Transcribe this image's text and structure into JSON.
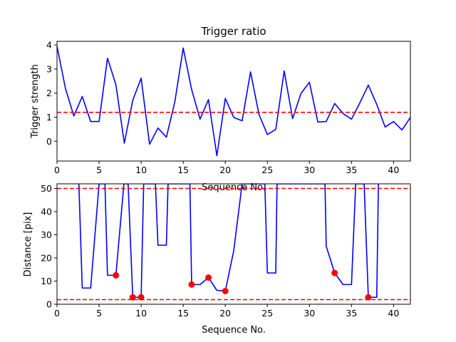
{
  "chart_data": [
    {
      "type": "line",
      "title": "Trigger ratio",
      "xlabel": "Sequence No.",
      "ylabel": "Trigger strength",
      "xlim": [
        0,
        42
      ],
      "ylim": [
        -0.82,
        4.15
      ],
      "xticks": [
        0,
        5,
        10,
        15,
        20,
        25,
        30,
        35,
        40
      ],
      "yticks": [
        0,
        1,
        2,
        3,
        4
      ],
      "grid": false,
      "series": [
        {
          "color": "#0000ff",
          "x": [
            0,
            1,
            2,
            3,
            4,
            5,
            6,
            7,
            8,
            9,
            10,
            11,
            12,
            13,
            14,
            15,
            16,
            17,
            18,
            19,
            20,
            21,
            22,
            23,
            24,
            25,
            26,
            27,
            28,
            29,
            30,
            31,
            32,
            33,
            34,
            35,
            36,
            37,
            38,
            39,
            40,
            41,
            42
          ],
          "y": [
            3.95,
            2.2,
            1.05,
            1.86,
            0.82,
            0.82,
            3.45,
            2.35,
            -0.08,
            1.7,
            2.62,
            -0.12,
            0.55,
            0.17,
            1.63,
            3.87,
            2.15,
            0.92,
            1.73,
            -0.6,
            1.78,
            0.99,
            0.85,
            2.88,
            1.12,
            0.28,
            0.49,
            2.92,
            0.94,
            1.99,
            2.45,
            0.8,
            0.82,
            1.57,
            1.15,
            0.92,
            1.6,
            2.33,
            1.53,
            0.59,
            0.82,
            0.47,
            0.99
          ]
        }
      ],
      "hlines": [
        {
          "y": 1.2,
          "color": "#ff0000",
          "style": "dashed"
        }
      ]
    },
    {
      "type": "line",
      "title": "",
      "xlabel": "Sequence No.",
      "ylabel": "Distance [pix]",
      "xlim": [
        0,
        42
      ],
      "ylim": [
        0,
        52
      ],
      "xticks": [
        0,
        5,
        10,
        15,
        20,
        25,
        30,
        35,
        40
      ],
      "yticks": [
        0,
        10,
        20,
        30,
        40,
        50
      ],
      "grid": false,
      "series": [
        {
          "color": "#0000ff",
          "x": [
            2.6,
            3,
            4,
            5,
            5.7,
            6,
            7,
            7.95,
            8.45,
            9,
            10,
            10.3,
            11.7,
            12,
            13,
            13.2,
            15.8,
            16,
            17,
            18,
            19,
            20,
            21,
            22,
            23,
            24,
            24.7,
            25,
            26,
            26.15,
            31.85,
            32,
            33,
            34,
            35,
            35.5,
            36.5,
            37,
            38,
            38.2
          ],
          "y": [
            52,
            7,
            7,
            52,
            52,
            12.5,
            12.5,
            52,
            52,
            3,
            3,
            52,
            52,
            25.5,
            25.5,
            52,
            52,
            8.5,
            8.5,
            11.5,
            6,
            5.7,
            23,
            52,
            52,
            52,
            52,
            13.5,
            13.5,
            52,
            52,
            25,
            13.5,
            8.5,
            8.5,
            52,
            52,
            3,
            3,
            52
          ]
        },
        {
          "color": "#ff0000",
          "marker": "circle",
          "x": [
            7,
            9,
            10,
            16,
            18,
            20,
            33,
            37
          ],
          "y": [
            12.5,
            3,
            3,
            8.5,
            11.5,
            5.7,
            13.5,
            3
          ]
        }
      ],
      "hlines": [
        {
          "y": 50,
          "color": "#ff0000",
          "style": "dashed"
        },
        {
          "y": 2,
          "color": "#ff0000",
          "style": "dashed"
        }
      ]
    }
  ]
}
